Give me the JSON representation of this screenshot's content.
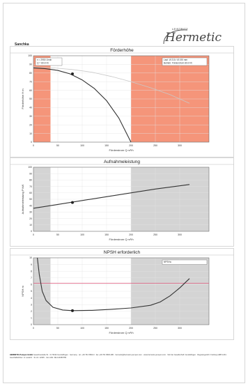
{
  "header": {
    "left_label": "Sanchka",
    "logo_small": "LEISTRITZ",
    "logo_main": "Hermetic"
  },
  "footer": {
    "company": "HERMETIC-Pumpen GmbH",
    "text": "Gewerbestraße 51 · D-79194 Gundelfingen · Germany · tel. +49 761 5830-0 · fax +49 761 5830-280 · hermetic@hermetic-pumpen.com · www.hermetic-pumpen.com · Sitz der Gesellschaft: Gundelfingen · Registergericht: Freiburg HRB 1234 · Geschäftsführer: H. Leistritz · St.-Nr. 12345 · Ust.-IdNr. DE 123456789"
  },
  "chart_data": [
    {
      "type": "line",
      "title": "Förderhöhe",
      "xlabel": "Förderstrom Q m³/h",
      "ylabel": "Förderhöhe H m",
      "xlim": [
        0,
        360
      ],
      "ylim": [
        0,
        100
      ],
      "xticks": [
        0,
        50,
        100,
        150,
        200,
        250,
        300
      ],
      "yticks": [
        0,
        10,
        20,
        30,
        40,
        50,
        60,
        70,
        80,
        90,
        100
      ],
      "shaded_regions": [
        [
          0,
          35
        ],
        [
          200,
          360
        ]
      ],
      "shade_color": "#f4896b",
      "legend_left": [
        "n = 2950 1/min",
        "Q = 80 m³/h"
      ],
      "legend_right": [
        "Lauf. Ø 210 / Ø 190 mm",
        "Betrieb: Förderstrom 80 m³/h"
      ],
      "operating_point": {
        "x": 80,
        "y": 79
      },
      "series": [
        {
          "color": "#333333",
          "x": [
            0,
            25,
            50,
            75,
            100,
            125,
            150,
            175,
            200
          ],
          "y": [
            86,
            85,
            83,
            79,
            72,
            62,
            48,
            28,
            0
          ]
        },
        {
          "color": "#c8c8c8",
          "x": [
            0,
            40,
            80,
            120,
            160,
            200,
            240,
            280,
            320
          ],
          "y": [
            87,
            86,
            84,
            81,
            76,
            70,
            63,
            55,
            45
          ]
        }
      ]
    },
    {
      "type": "line",
      "title": "Aufnahmeleistung",
      "xlabel": "Förderstrom Q m³/h",
      "ylabel": "Aufnahmeleistung P kW",
      "xlim": [
        0,
        360
      ],
      "ylim": [
        0,
        100
      ],
      "xticks": [
        0,
        50,
        100,
        150,
        200,
        250,
        300
      ],
      "yticks": [
        0,
        10,
        20,
        30,
        40,
        50,
        60,
        70,
        80,
        90,
        100
      ],
      "shaded_regions": [
        [
          0,
          35
        ],
        [
          200,
          360
        ]
      ],
      "shade_color": "#cfcfcf",
      "operating_point": {
        "x": 80,
        "y": 45
      },
      "series": [
        {
          "color": "#333333",
          "x": [
            0,
            50,
            100,
            150,
            200,
            250,
            300,
            320
          ],
          "y": [
            36,
            42,
            48,
            54,
            60,
            66,
            71,
            73
          ]
        }
      ]
    },
    {
      "type": "line",
      "title": "NPSH erforderlich",
      "xlabel": "Förderstrom Q m³/h",
      "ylabel": "NPSH m",
      "xlim": [
        0,
        360
      ],
      "ylim": [
        0,
        10
      ],
      "xticks": [
        0,
        50,
        100,
        150,
        200,
        250,
        300
      ],
      "yticks": [
        0,
        1,
        2,
        3,
        4,
        5,
        6,
        7,
        8,
        9,
        10
      ],
      "shaded_regions": [
        [
          0,
          35
        ],
        [
          200,
          360
        ]
      ],
      "shade_color": "#cfcfcf",
      "legend_right": [
        "NPSHa"
      ],
      "reference_line": {
        "y": 6.2,
        "color": "#e06a8a"
      },
      "operating_point": {
        "x": 80,
        "y": 2.1
      },
      "series": [
        {
          "color": "#333333",
          "x": [
            8,
            12,
            18,
            26,
            40,
            60,
            80,
            120,
            160,
            200,
            240,
            260,
            280,
            300,
            320
          ],
          "y": [
            10,
            7.5,
            5,
            3.6,
            2.6,
            2.2,
            2.1,
            2.15,
            2.3,
            2.5,
            2.9,
            3.4,
            4.3,
            5.5,
            6.9
          ]
        }
      ]
    }
  ]
}
